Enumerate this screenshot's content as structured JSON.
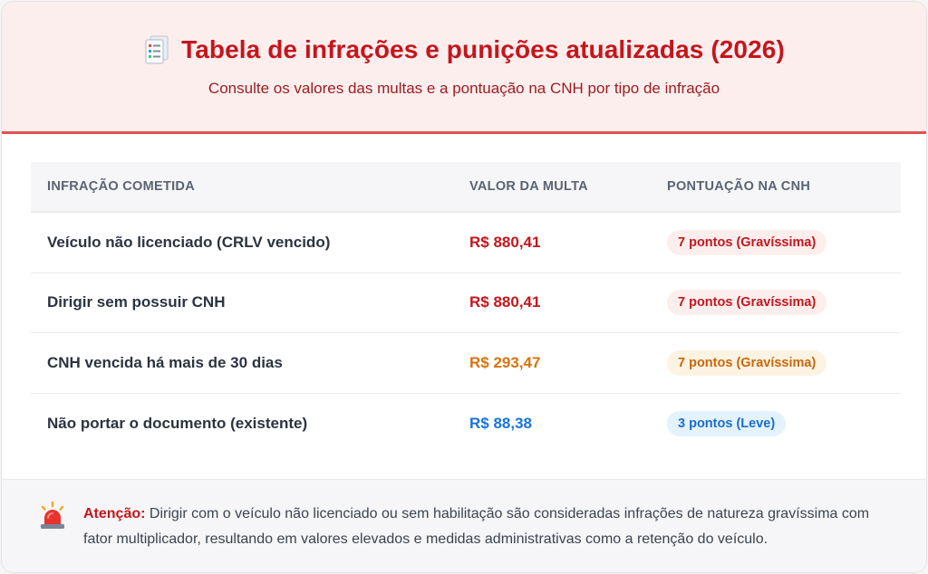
{
  "header": {
    "icon": "document-list-icon",
    "title": "Tabela de infrações e punições atualizadas (2026)",
    "subtitle": "Consulte os valores das multas e a pontuação na CNH por tipo de infração"
  },
  "table": {
    "columns": [
      "INFRAÇÃO COMETIDA",
      "VALOR DA MULTA",
      "PONTUAÇÃO NA CNH"
    ],
    "rows": [
      {
        "infraction": "Veículo não licenciado (CRLV vencido)",
        "value": "R$ 880,41",
        "points": "7 pontos (Gravíssima)",
        "severity": "gravissima"
      },
      {
        "infraction": "Dirigir sem possuir CNH",
        "value": "R$ 880,41",
        "points": "7 pontos (Gravíssima)",
        "severity": "gravissima"
      },
      {
        "infraction": "CNH vencida há mais de 30 dias",
        "value": "R$ 293,47",
        "points": "7 pontos (Gravíssima)",
        "severity": "gravissima-orange"
      },
      {
        "infraction": "Não portar o documento (existente)",
        "value": "R$ 88,38",
        "points": "3 pontos (Leve)",
        "severity": "leve"
      }
    ]
  },
  "colors": {
    "accent_red": "#c4161c",
    "value_orange": "#d9730d",
    "value_blue": "#1a73d9",
    "badge_red_bg": "#fdeeee",
    "badge_orange_bg": "#fdf3e3",
    "badge_blue_bg": "#e4f2fd"
  },
  "footer": {
    "icon": "siren-icon",
    "label": "Atenção:",
    "text": "Dirigir com o veículo não licenciado ou sem habilitação são consideradas infrações de natureza gravíssima com fator multiplicador, resultando em valores elevados e medidas administrativas como a retenção do veículo."
  }
}
